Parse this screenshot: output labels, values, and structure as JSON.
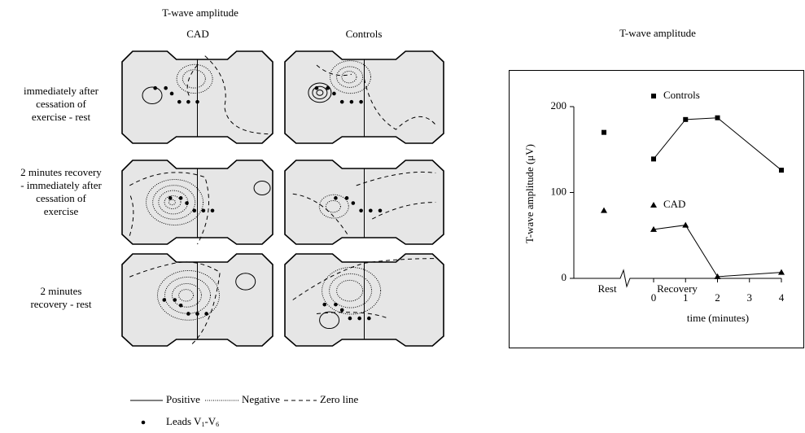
{
  "figure": {
    "title": "T-wave amplitude",
    "columns": [
      "CAD",
      "Controls"
    ],
    "rows": [
      [
        "immediately after",
        "cessation of",
        "exercise - rest"
      ],
      [
        "2 minutes recovery",
        "- immediately after",
        "cessation of",
        "exercise"
      ],
      [
        "2 minutes",
        "recovery - rest"
      ]
    ],
    "legend": {
      "positive": "Positive",
      "negative": "Negative",
      "zero": "Zero line",
      "leads": {
        "text": "Leads V",
        "sub1": "1",
        "mid": "-V",
        "sub2": "6"
      }
    }
  },
  "chart_data": {
    "type": "line",
    "title": "T-wave amplitude",
    "ylabel": "T-wave  amplitude (μV)",
    "xlabel": "time (minutes)",
    "rest_label": "Rest",
    "recovery_label": "Recovery",
    "ylim": [
      0,
      200
    ],
    "yticks": [
      0,
      100,
      200
    ],
    "xlim": [
      0,
      4
    ],
    "xticks": [
      0,
      1,
      2,
      3,
      4
    ],
    "series": [
      {
        "name": "Controls",
        "marker": "square",
        "color": "#000000",
        "rest_value": 170,
        "x": [
          0,
          1,
          2,
          4
        ],
        "values": [
          139,
          185,
          187,
          126
        ]
      },
      {
        "name": "CAD",
        "marker": "triangle",
        "color": "#000000",
        "rest_value": 79,
        "x": [
          0,
          1,
          2,
          4
        ],
        "values": [
          57,
          62,
          2,
          7
        ]
      }
    ]
  }
}
